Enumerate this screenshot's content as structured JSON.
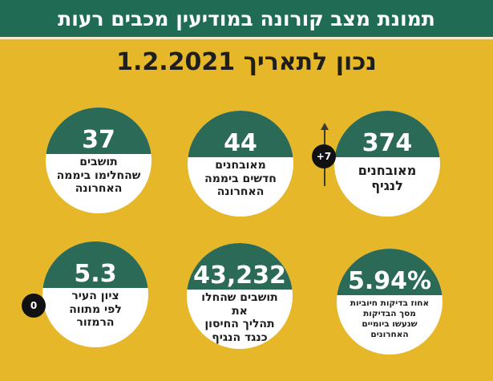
{
  "header": {
    "title": "תמונת מצב קורונה במודיעין מכבים רעות",
    "date_line": "נכון לתאריך 1.2.2021"
  },
  "cards": [
    {
      "value": "374",
      "lines": [
        "מאובחנים",
        "לנגיף"
      ]
    },
    {
      "value": "44",
      "lines": [
        "מאובחנים",
        "חדשים ביממה",
        "האחרונה"
      ]
    },
    {
      "value": "37",
      "lines": [
        "תושבים",
        "שהחלימו ביממה",
        "האחרונה"
      ]
    },
    {
      "value": "5.94%",
      "lines": [
        "אחוז בדיקות חיוביות",
        "מסך הבדיקות",
        "שנעשו ביומיים",
        "האחרונים"
      ]
    },
    {
      "value": "43,232",
      "lines": [
        "תושבים שהחלו את",
        "תהליך החיסון",
        "כנגד הנגיף"
      ]
    },
    {
      "value": "5.3",
      "lines": [
        "ציון העיר",
        "לפי מתווה",
        "הרמזור"
      ]
    }
  ],
  "badges": {
    "diagnosed_change": "+7",
    "score_change": "0"
  },
  "colors": {
    "background": "#e6b728",
    "header": "#1f6b54",
    "card_top": "#2a6a57"
  }
}
